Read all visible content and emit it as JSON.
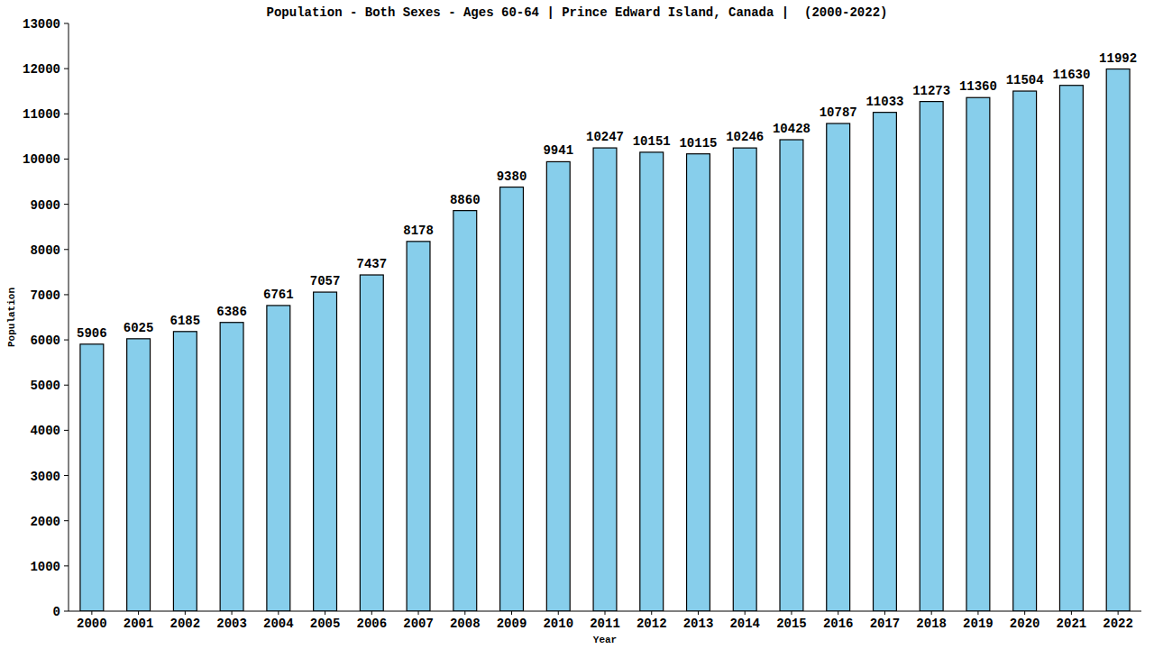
{
  "chart_data": {
    "type": "bar",
    "title": "Population - Both Sexes - Ages 60-64 | Prince Edward Island, Canada |  (2000-2022)",
    "x_label": "Year",
    "y_label": "Population",
    "categories": [
      "2000",
      "2001",
      "2002",
      "2003",
      "2004",
      "2005",
      "2006",
      "2007",
      "2008",
      "2009",
      "2010",
      "2011",
      "2012",
      "2013",
      "2014",
      "2015",
      "2016",
      "2017",
      "2018",
      "2019",
      "2020",
      "2021",
      "2022"
    ],
    "values": [
      5906,
      6025,
      6185,
      6386,
      6761,
      7057,
      7437,
      8178,
      8860,
      9380,
      9941,
      10247,
      10151,
      10115,
      10246,
      10428,
      10787,
      11033,
      11273,
      11360,
      11504,
      11630,
      11992
    ],
    "color": "#87ceeb",
    "ylim": [
      0,
      13000
    ],
    "yticks": [
      0,
      1000,
      2000,
      3000,
      4000,
      5000,
      6000,
      7000,
      8000,
      9000,
      10000,
      11000,
      12000,
      13000
    ],
    "grid": false,
    "data_labels": true
  }
}
